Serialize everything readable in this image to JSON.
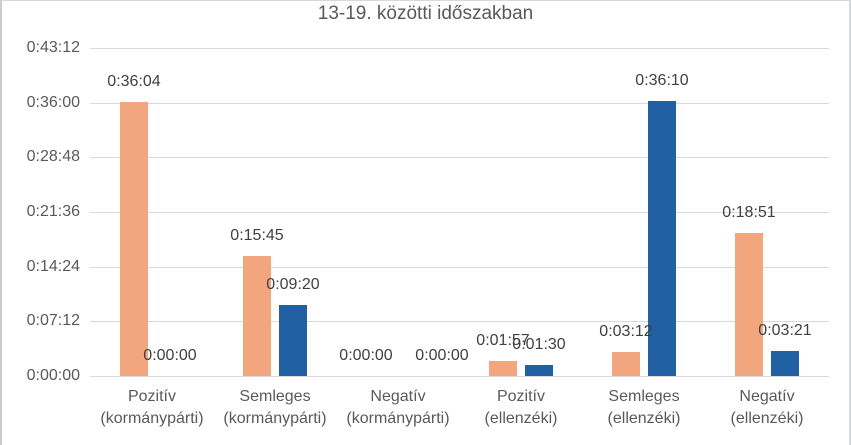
{
  "chart_data": {
    "type": "bar",
    "title": "13-19. közötti időszakban",
    "categories": [
      {
        "line1": "Pozitív",
        "line2": "(kormánypárti)"
      },
      {
        "line1": "Semleges",
        "line2": "(kormánypárti)"
      },
      {
        "line1": "Negatív",
        "line2": "(kormánypárti)"
      },
      {
        "line1": "Pozitív",
        "line2": "(ellenzéki)"
      },
      {
        "line1": "Semleges",
        "line2": "(ellenzéki)"
      },
      {
        "line1": "Negatív",
        "line2": "(ellenzéki)"
      }
    ],
    "series": [
      {
        "name": "orange-series",
        "color": "#F2A67E",
        "values": [
          "0:36:04",
          "0:15:45",
          "0:00:00",
          "0:01:57",
          "0:03:12",
          "0:18:51"
        ]
      },
      {
        "name": "blue-series",
        "color": "#2160A3",
        "values": [
          "0:00:00",
          "0:09:20",
          "0:00:00",
          "0:01:30",
          "0:36:10",
          "0:03:21"
        ]
      }
    ],
    "y_axis": {
      "ticks": [
        "0:00:00",
        "0:07:12",
        "0:14:24",
        "0:21:36",
        "0:28:48",
        "0:36:00",
        "0:43:12"
      ],
      "max": "0:43:12"
    },
    "ylim_seconds": [
      0,
      2592
    ],
    "grid": true,
    "legend": "none",
    "data_labels": true,
    "colors": {
      "gridline": "#D9D9D9",
      "axis_text": "#595959",
      "data_label_text": "#404040",
      "title_text": "#595959",
      "background": "#FFFFFF"
    }
  }
}
